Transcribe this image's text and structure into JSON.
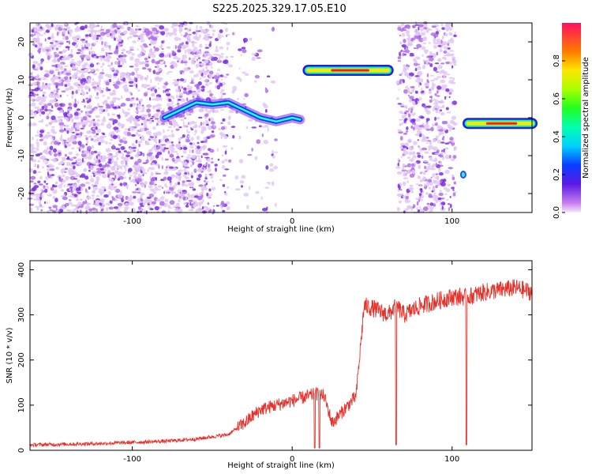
{
  "title": "S225.2025.329.17.05.E10",
  "chart_data": [
    {
      "type": "heatmap",
      "xlabel": "Height of straight line (km)",
      "ylabel": "Frequency (Hz)",
      "xlim": [
        -164,
        150
      ],
      "ylim": [
        -25,
        25
      ],
      "xticks": [
        -100,
        0,
        100
      ],
      "yticks": [
        -20,
        -10,
        0,
        10,
        20
      ],
      "colorbar": {
        "label": "Normalized spectral amplitude",
        "range": [
          0,
          1
        ],
        "ticks": [
          0.0,
          0.2,
          0.4,
          0.6,
          0.8
        ]
      },
      "features": [
        {
          "x": [
            -80,
            -70,
            -60,
            -50,
            -40,
            -30,
            -20,
            -10,
            0,
            5
          ],
          "y": [
            0,
            2,
            4,
            3.5,
            4,
            2,
            0,
            -1,
            0,
            -0.5
          ],
          "amplitude": 0.3
        },
        {
          "x": [
            10,
            60
          ],
          "y": [
            12.5,
            12.5
          ],
          "amplitude": 0.9
        },
        {
          "x": [
            110,
            150
          ],
          "y": [
            -1.5,
            -1.5
          ],
          "amplitude": 0.9
        },
        {
          "x": [
            107
          ],
          "y": [
            -15
          ],
          "amplitude": 0.3
        }
      ]
    },
    {
      "type": "line",
      "xlabel": "Height of straight line (km)",
      "ylabel": "SNR (10 * v/v)",
      "xlim": [
        -164,
        150
      ],
      "ylim": [
        0,
        420
      ],
      "xticks": [
        -100,
        0,
        100
      ],
      "yticks": [
        0,
        100,
        200,
        300,
        400
      ],
      "series": [
        {
          "color": "#e8302a",
          "x": [
            -164,
            -120,
            -80,
            -60,
            -40,
            -30,
            -20,
            -10,
            0,
            10,
            15,
            20,
            25,
            30,
            35,
            40,
            45,
            50,
            60,
            65,
            70,
            80,
            100,
            110,
            120,
            140,
            150
          ],
          "y": [
            12,
            15,
            20,
            25,
            35,
            60,
            90,
            100,
            110,
            120,
            125,
            120,
            60,
            80,
            100,
            120,
            320,
            315,
            300,
            320,
            300,
            320,
            340,
            340,
            350,
            360,
            350
          ],
          "dips": [
            {
              "x": 65,
              "y": 12
            },
            {
              "x": 109,
              "y": 12
            },
            {
              "x": 14,
              "y": 5
            },
            {
              "x": 17,
              "y": 5
            }
          ]
        }
      ]
    }
  ]
}
